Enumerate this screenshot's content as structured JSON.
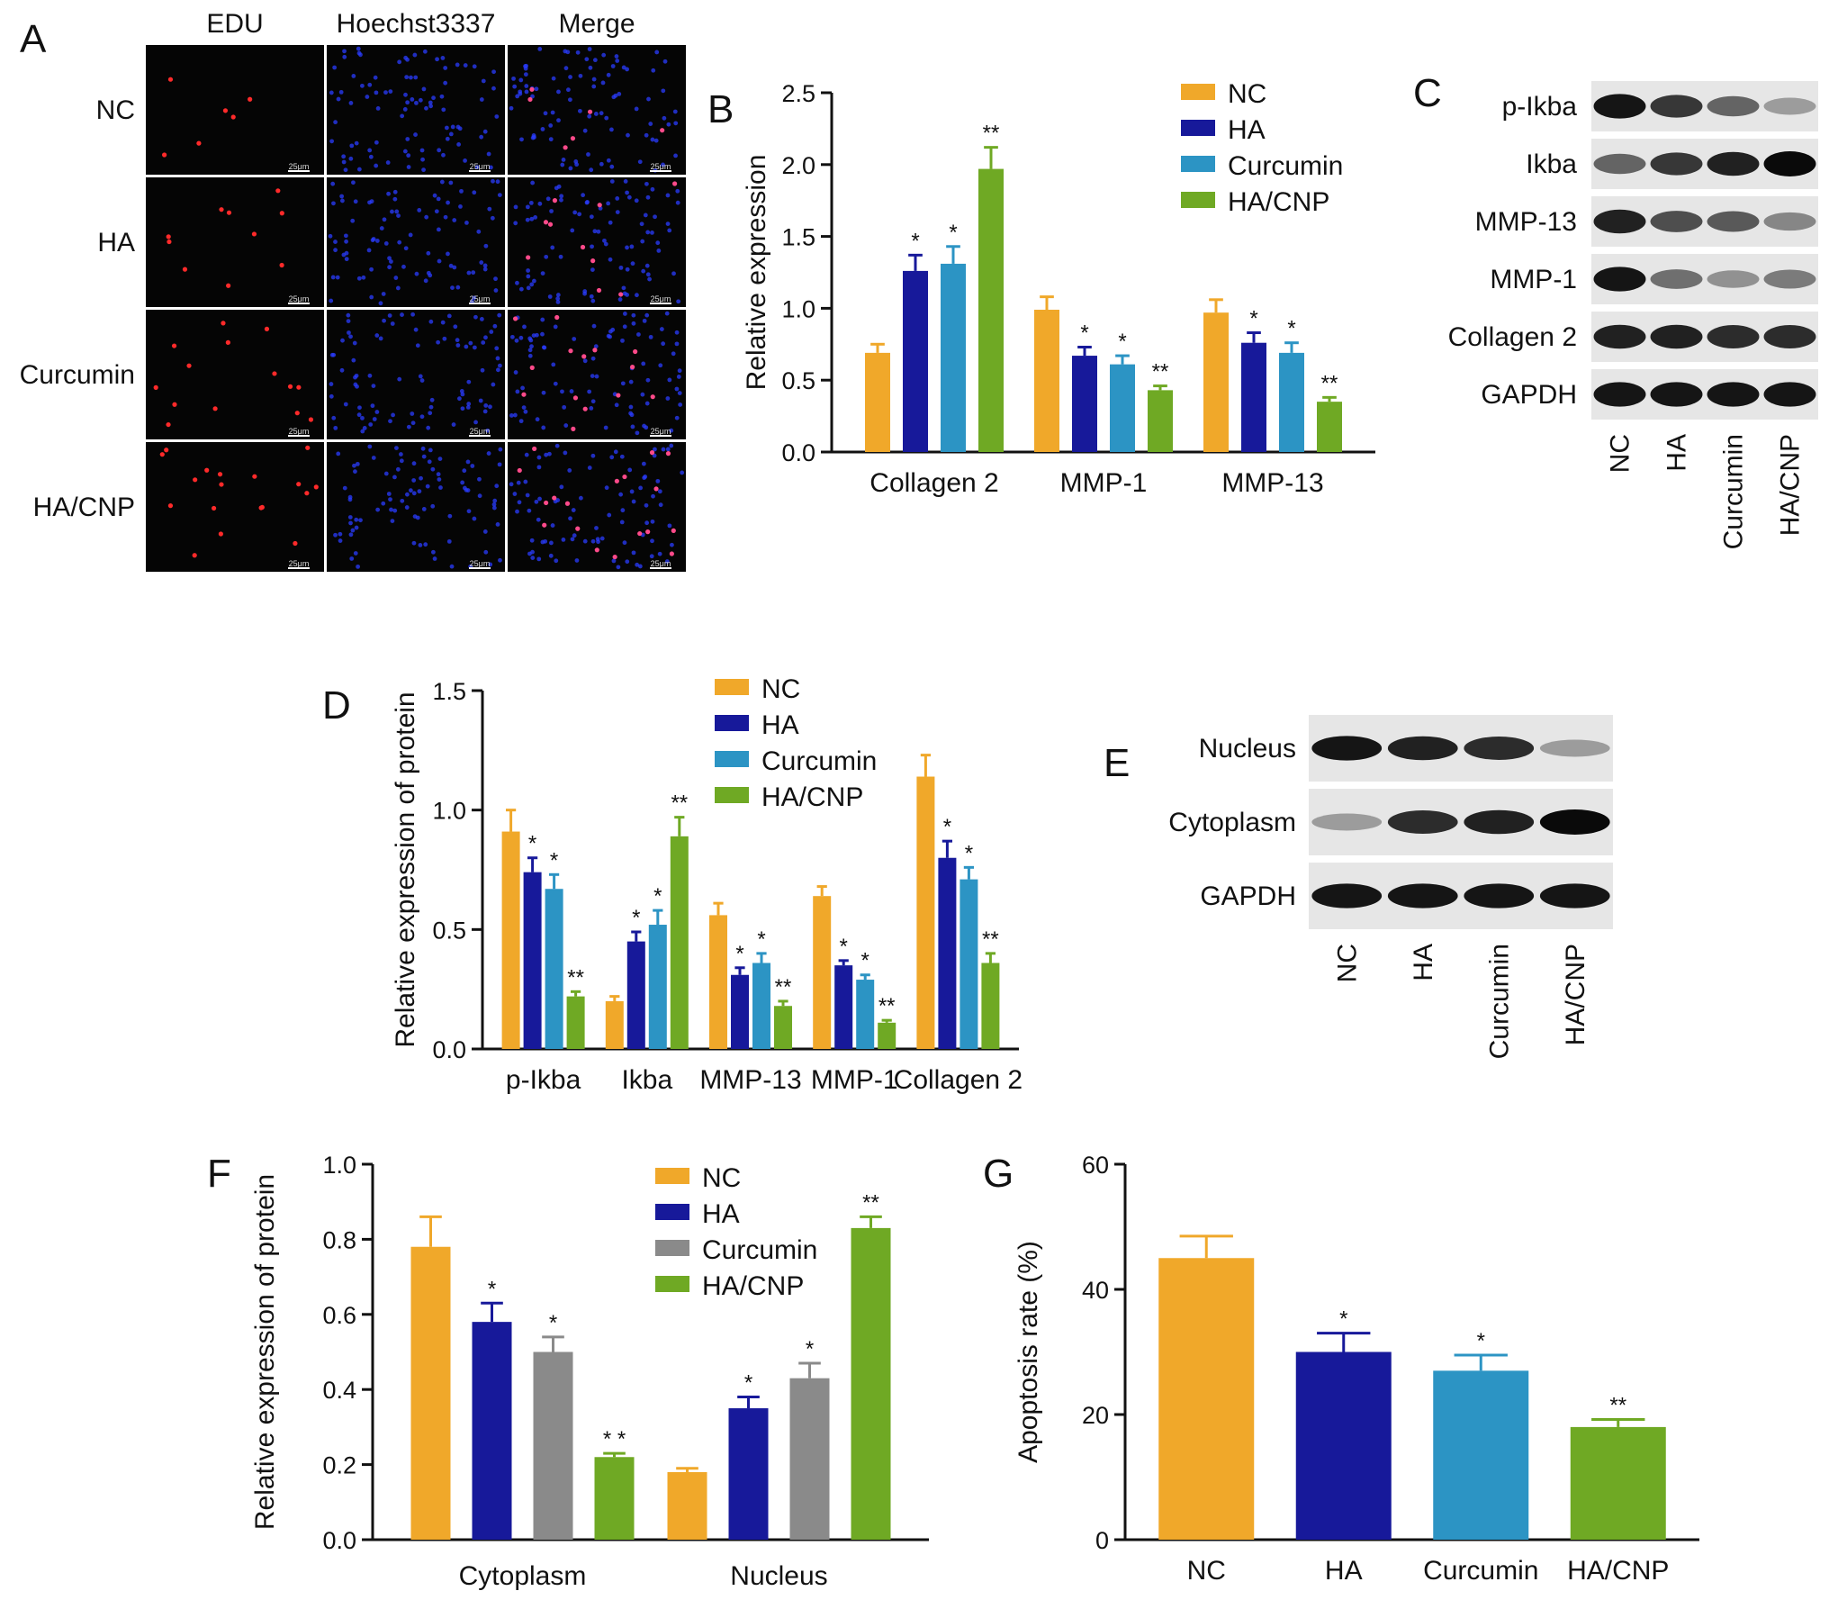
{
  "colors": {
    "NC": "#f0a82a",
    "HA": "#17199a",
    "Curcumin": "#2c94c4",
    "HA/CNP": "#6fa924",
    "Curcumin_F": "#8a8a8a",
    "axis": "#111111"
  },
  "panelA": {
    "letter": "A",
    "columns": [
      "EDU",
      "Hoechst3337",
      "Merge"
    ],
    "rows": [
      "NC",
      "HA",
      "Curcumin",
      "HA/CNP"
    ],
    "scale_label": "25μm"
  },
  "panelC": {
    "letter": "C",
    "rows": [
      "p-Ikba",
      "Ikba",
      "MMP-13",
      "MMP-1",
      "Collagen 2",
      "GAPDH"
    ],
    "lanes": [
      "NC",
      "HA",
      "Curcumin",
      "HA/CNP"
    ],
    "intensity": [
      [
        0.95,
        0.8,
        0.6,
        0.35
      ],
      [
        0.6,
        0.8,
        0.9,
        1.0
      ],
      [
        0.9,
        0.7,
        0.65,
        0.45
      ],
      [
        0.95,
        0.55,
        0.4,
        0.5
      ],
      [
        0.9,
        0.9,
        0.85,
        0.85
      ],
      [
        0.95,
        0.95,
        0.95,
        0.95
      ]
    ]
  },
  "panelE": {
    "letter": "E",
    "rows": [
      "Nucleus",
      "Cytoplasm",
      "GAPDH"
    ],
    "lanes": [
      "NC",
      "HA",
      "Curcumin",
      "HA/CNP"
    ],
    "intensity": [
      [
        0.95,
        0.9,
        0.85,
        0.35
      ],
      [
        0.35,
        0.85,
        0.9,
        1.0
      ],
      [
        0.95,
        0.95,
        0.95,
        0.95
      ]
    ]
  },
  "chart_data": [
    {
      "panel": "B",
      "type": "bar",
      "ylabel": "Relative expression",
      "ylim": [
        0,
        2.5
      ],
      "yticks": [
        "0.0",
        "0.5",
        "1.0",
        "1.5",
        "2.0",
        "2.5"
      ],
      "legend_position": "top-right",
      "categories": [
        "Collagen 2",
        "MMP-1",
        "MMP-13"
      ],
      "series": [
        {
          "name": "NC",
          "values": [
            0.69,
            0.99,
            0.97
          ],
          "errors": [
            0.06,
            0.09,
            0.09
          ],
          "sig": [
            "",
            "",
            ""
          ]
        },
        {
          "name": "HA",
          "values": [
            1.26,
            0.67,
            0.76
          ],
          "errors": [
            0.11,
            0.06,
            0.07
          ],
          "sig": [
            "*",
            "*",
            "*"
          ]
        },
        {
          "name": "Curcumin",
          "values": [
            1.31,
            0.61,
            0.69
          ],
          "errors": [
            0.12,
            0.06,
            0.07
          ],
          "sig": [
            "*",
            "*",
            "*"
          ]
        },
        {
          "name": "HA/CNP",
          "values": [
            1.97,
            0.43,
            0.35
          ],
          "errors": [
            0.15,
            0.03,
            0.03
          ],
          "sig": [
            "**",
            "**",
            "**"
          ]
        }
      ]
    },
    {
      "panel": "D",
      "type": "bar",
      "ylabel": "Relative expression of protein",
      "ylim": [
        0,
        1.5
      ],
      "yticks": [
        "0.0",
        "0.5",
        "1.0",
        "1.5"
      ],
      "legend_position": "top-center",
      "categories": [
        "p-Ikba",
        "Ikba",
        "MMP-13",
        "MMP-1",
        "Collagen 2"
      ],
      "series": [
        {
          "name": "NC",
          "values": [
            0.91,
            0.2,
            0.56,
            0.64,
            1.14
          ],
          "errors": [
            0.09,
            0.02,
            0.05,
            0.04,
            0.09
          ],
          "sig": [
            "",
            "",
            "",
            "",
            ""
          ]
        },
        {
          "name": "HA",
          "values": [
            0.74,
            0.45,
            0.31,
            0.35,
            0.8
          ],
          "errors": [
            0.06,
            0.04,
            0.03,
            0.02,
            0.07
          ],
          "sig": [
            "*",
            "*",
            "*",
            "*",
            "*"
          ]
        },
        {
          "name": "Curcumin",
          "values": [
            0.67,
            0.52,
            0.36,
            0.29,
            0.71
          ],
          "errors": [
            0.06,
            0.06,
            0.04,
            0.02,
            0.05
          ],
          "sig": [
            "*",
            "*",
            "*",
            "*",
            "*"
          ]
        },
        {
          "name": "HA/CNP",
          "values": [
            0.22,
            0.89,
            0.18,
            0.11,
            0.36
          ],
          "errors": [
            0.02,
            0.08,
            0.02,
            0.01,
            0.04
          ],
          "sig": [
            "**",
            "**",
            "**",
            "**",
            "**"
          ]
        }
      ]
    },
    {
      "panel": "F",
      "type": "bar",
      "ylabel": "Relative expression of protein",
      "ylim": [
        0,
        1.0
      ],
      "yticks": [
        "0.0",
        "0.2",
        "0.4",
        "0.6",
        "0.8",
        "1.0"
      ],
      "legend_position": "top-center",
      "categories": [
        "Cytoplasm",
        "Nucleus"
      ],
      "series": [
        {
          "name": "NC",
          "values": [
            0.78,
            0.18
          ],
          "errors": [
            0.08,
            0.01
          ],
          "sig": [
            "",
            ""
          ]
        },
        {
          "name": "HA",
          "values": [
            0.58,
            0.35
          ],
          "errors": [
            0.05,
            0.03
          ],
          "sig": [
            "*",
            "*"
          ]
        },
        {
          "name": "Curcumin",
          "values": [
            0.5,
            0.43
          ],
          "errors": [
            0.04,
            0.04
          ],
          "sig": [
            "*",
            "*"
          ]
        },
        {
          "name": "HA/CNP",
          "values": [
            0.22,
            0.83
          ],
          "errors": [
            0.01,
            0.03
          ],
          "sig": [
            "* *",
            "**"
          ]
        }
      ]
    },
    {
      "panel": "G",
      "type": "bar",
      "ylabel": "Apoptosis rate (%)",
      "ylim": [
        0,
        60
      ],
      "yticks": [
        "0",
        "20",
        "40",
        "60"
      ],
      "categories": [
        "NC",
        "HA",
        "Curcumin",
        "HA/CNP"
      ],
      "values": [
        45,
        30,
        27,
        18
      ],
      "errors": [
        3.5,
        3,
        2.5,
        1.2
      ],
      "sig": [
        "",
        "*",
        "*",
        "**"
      ]
    }
  ]
}
